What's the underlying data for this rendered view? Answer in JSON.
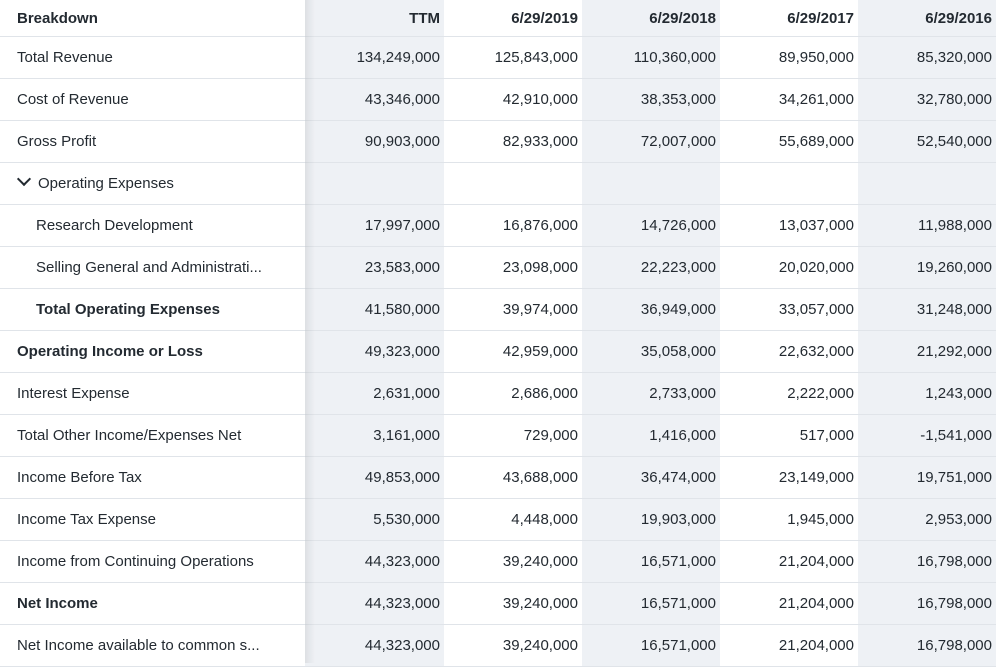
{
  "header": {
    "label": "Breakdown",
    "columns": [
      "TTM",
      "6/29/2019",
      "6/29/2018",
      "6/29/2017",
      "6/29/2016"
    ]
  },
  "rows": [
    {
      "label": "Total Revenue",
      "values": [
        "134,249,000",
        "125,843,000",
        "110,360,000",
        "89,950,000",
        "85,320,000"
      ]
    },
    {
      "label": "Cost of Revenue",
      "values": [
        "43,346,000",
        "42,910,000",
        "38,353,000",
        "34,261,000",
        "32,780,000"
      ]
    },
    {
      "label": "Gross Profit",
      "values": [
        "90,903,000",
        "82,933,000",
        "72,007,000",
        "55,689,000",
        "52,540,000"
      ]
    },
    {
      "label": "Operating Expenses",
      "values": [
        "",
        "",
        "",
        "",
        ""
      ]
    },
    {
      "label": "Research Development",
      "values": [
        "17,997,000",
        "16,876,000",
        "14,726,000",
        "13,037,000",
        "11,988,000"
      ]
    },
    {
      "label": "Selling General and Administrati...",
      "values": [
        "23,583,000",
        "23,098,000",
        "22,223,000",
        "20,020,000",
        "19,260,000"
      ]
    },
    {
      "label": "Total Operating Expenses",
      "values": [
        "41,580,000",
        "39,974,000",
        "36,949,000",
        "33,057,000",
        "31,248,000"
      ]
    },
    {
      "label": "Operating Income or Loss",
      "values": [
        "49,323,000",
        "42,959,000",
        "35,058,000",
        "22,632,000",
        "21,292,000"
      ]
    },
    {
      "label": "Interest Expense",
      "values": [
        "2,631,000",
        "2,686,000",
        "2,733,000",
        "2,222,000",
        "1,243,000"
      ]
    },
    {
      "label": "Total Other Income/Expenses Net",
      "values": [
        "3,161,000",
        "729,000",
        "1,416,000",
        "517,000",
        "-1,541,000"
      ]
    },
    {
      "label": "Income Before Tax",
      "values": [
        "49,853,000",
        "43,688,000",
        "36,474,000",
        "23,149,000",
        "19,751,000"
      ]
    },
    {
      "label": "Income Tax Expense",
      "values": [
        "5,530,000",
        "4,448,000",
        "19,903,000",
        "1,945,000",
        "2,953,000"
      ]
    },
    {
      "label": "Income from Continuing Operations",
      "values": [
        "44,323,000",
        "39,240,000",
        "16,571,000",
        "21,204,000",
        "16,798,000"
      ]
    },
    {
      "label": "Net Income",
      "values": [
        "44,323,000",
        "39,240,000",
        "16,571,000",
        "21,204,000",
        "16,798,000"
      ]
    },
    {
      "label": "Net Income available to common s...",
      "values": [
        "44,323,000",
        "39,240,000",
        "16,571,000",
        "21,204,000",
        "16,798,000"
      ]
    }
  ]
}
